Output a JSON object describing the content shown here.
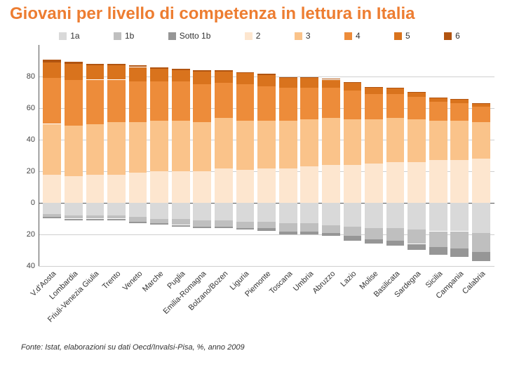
{
  "title": "Giovani per livello di competenza in lettura in Italia",
  "footer": "Fonte: Istat, elaborazioni su dati Oecd/Invalsi-Pisa, %, anno 2009",
  "chart": {
    "type": "stacked-bar-diverging",
    "y_min": -40,
    "y_max": 100,
    "y_ticks_pos": [
      0,
      20,
      40,
      60,
      80
    ],
    "y_ticks_neg": [
      20,
      40
    ],
    "series": [
      {
        "key": "1a",
        "label": "1a",
        "color": "#d9d9d9",
        "side": "neg"
      },
      {
        "key": "1b",
        "label": "1b",
        "color": "#bfbfbf",
        "side": "neg"
      },
      {
        "key": "sotto1b",
        "label": "Sotto 1b",
        "color": "#969696",
        "side": "neg"
      },
      {
        "key": "l2",
        "label": "2",
        "color": "#fde6cf",
        "side": "pos"
      },
      {
        "key": "l3",
        "label": "3",
        "color": "#fac38a",
        "side": "pos"
      },
      {
        "key": "l4",
        "label": "4",
        "color": "#ed8c3a",
        "side": "pos"
      },
      {
        "key": "l5",
        "label": "5",
        "color": "#d9731d",
        "side": "pos"
      },
      {
        "key": "l6",
        "label": "6",
        "color": "#b15410",
        "side": "pos"
      }
    ],
    "categories": [
      {
        "label": "V.d'Aosta",
        "1a": 7,
        "1b": 2,
        "sotto1b": 1,
        "l2": 18,
        "l3": 32,
        "l4": 29,
        "l5": 10,
        "l6": 1.5
      },
      {
        "label": "Lombardia",
        "1a": 8,
        "1b": 2,
        "sotto1b": 1,
        "l2": 17,
        "l3": 32,
        "l4": 29,
        "l5": 10,
        "l6": 1.5
      },
      {
        "label": "Friuli-Venezia Giulia",
        "1a": 8,
        "1b": 2,
        "sotto1b": 1,
        "l2": 18,
        "l3": 32,
        "l4": 28,
        "l5": 9,
        "l6": 1.2
      },
      {
        "label": "Trento",
        "1a": 8,
        "1b": 2,
        "sotto1b": 1,
        "l2": 18,
        "l3": 33,
        "l4": 27,
        "l5": 9,
        "l6": 1.2
      },
      {
        "label": "Veneto",
        "1a": 9,
        "1b": 3,
        "sotto1b": 1,
        "l2": 19,
        "l3": 32,
        "l4": 26,
        "l5": 9,
        "l6": 1.2
      },
      {
        "label": "Marche",
        "1a": 10,
        "1b": 3,
        "sotto1b": 1,
        "l2": 20,
        "l3": 32,
        "l4": 25,
        "l5": 8,
        "l6": 1.0
      },
      {
        "label": "Puglia",
        "1a": 10,
        "1b": 4,
        "sotto1b": 1,
        "l2": 20,
        "l3": 32,
        "l4": 25,
        "l5": 7,
        "l6": 1.0
      },
      {
        "label": "Emilia-Romagna",
        "1a": 11,
        "1b": 4,
        "sotto1b": 1,
        "l2": 20,
        "l3": 31,
        "l4": 24,
        "l5": 8,
        "l6": 1.0
      },
      {
        "label": "Bolzano/Bozen",
        "1a": 11,
        "1b": 4,
        "sotto1b": 1,
        "l2": 22,
        "l3": 32,
        "l4": 22,
        "l5": 7,
        "l6": 0.8
      },
      {
        "label": "Liguria",
        "1a": 12,
        "1b": 4,
        "sotto1b": 1,
        "l2": 21,
        "l3": 31,
        "l4": 23,
        "l5": 7,
        "l6": 0.8
      },
      {
        "label": "Piemonte",
        "1a": 12,
        "1b": 4,
        "sotto1b": 2,
        "l2": 22,
        "l3": 30,
        "l4": 22,
        "l5": 7,
        "l6": 0.8
      },
      {
        "label": "Toscana",
        "1a": 13,
        "1b": 5,
        "sotto1b": 2,
        "l2": 22,
        "l3": 30,
        "l4": 21,
        "l5": 6,
        "l6": 0.7
      },
      {
        "label": "Umbria",
        "1a": 13,
        "1b": 5,
        "sotto1b": 2,
        "l2": 23,
        "l3": 30,
        "l4": 20,
        "l5": 6,
        "l6": 0.6
      },
      {
        "label": "Abruzzo",
        "1a": 14,
        "1b": 5,
        "sotto1b": 2,
        "l2": 24,
        "l3": 30,
        "l4": 19,
        "l5": 5,
        "l6": 0.6
      },
      {
        "label": "Lazio",
        "1a": 15,
        "1b": 6,
        "sotto1b": 3,
        "l2": 24,
        "l3": 29,
        "l4": 18,
        "l5": 5,
        "l6": 0.5
      },
      {
        "label": "Molise",
        "1a": 16,
        "1b": 7,
        "sotto1b": 3,
        "l2": 25,
        "l3": 28,
        "l4": 16,
        "l5": 4,
        "l6": 0.4
      },
      {
        "label": "Basilicata",
        "1a": 16,
        "1b": 8,
        "sotto1b": 3,
        "l2": 26,
        "l3": 28,
        "l4": 15,
        "l5": 3.5,
        "l6": 0.4
      },
      {
        "label": "Sardegna",
        "1a": 17,
        "1b": 9,
        "sotto1b": 4,
        "l2": 26,
        "l3": 27,
        "l4": 14,
        "l5": 3,
        "l6": 0.3
      },
      {
        "label": "Sicilia",
        "1a": 18,
        "1b": 10,
        "sotto1b": 5,
        "l2": 27,
        "l3": 25,
        "l4": 12,
        "l5": 2.5,
        "l6": 0.3
      },
      {
        "label": "Campania",
        "1a": 18,
        "1b": 11,
        "sotto1b": 5,
        "l2": 27,
        "l3": 25,
        "l4": 11,
        "l5": 2.5,
        "l6": 0.2
      },
      {
        "label": "Calabria",
        "1a": 19,
        "1b": 12,
        "sotto1b": 6,
        "l2": 28,
        "l3": 23,
        "l4": 10,
        "l5": 2,
        "l6": 0.2
      }
    ],
    "gridline_color": "#cfcfcf",
    "background": "#ffffff"
  }
}
